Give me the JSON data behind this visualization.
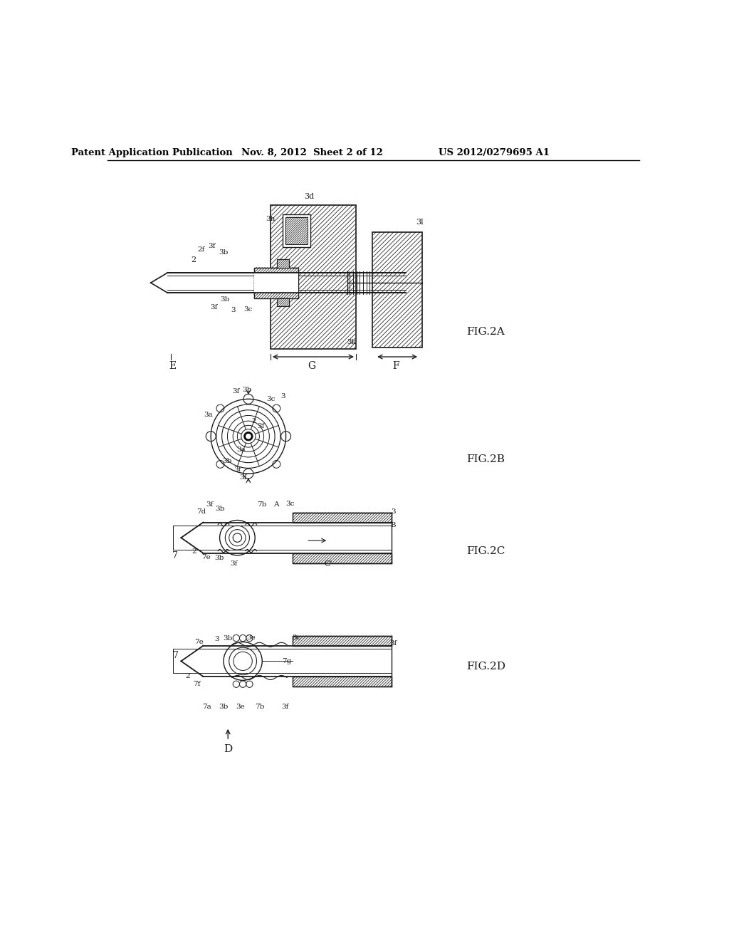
{
  "bg_color": "#ffffff",
  "header_left": "Patent Application Publication",
  "header_mid": "Nov. 8, 2012  Sheet 2 of 12",
  "header_right": "US 2012/0279695 A1",
  "line_color": "#1a1a1a",
  "hatch_color": "#2a2a2a"
}
